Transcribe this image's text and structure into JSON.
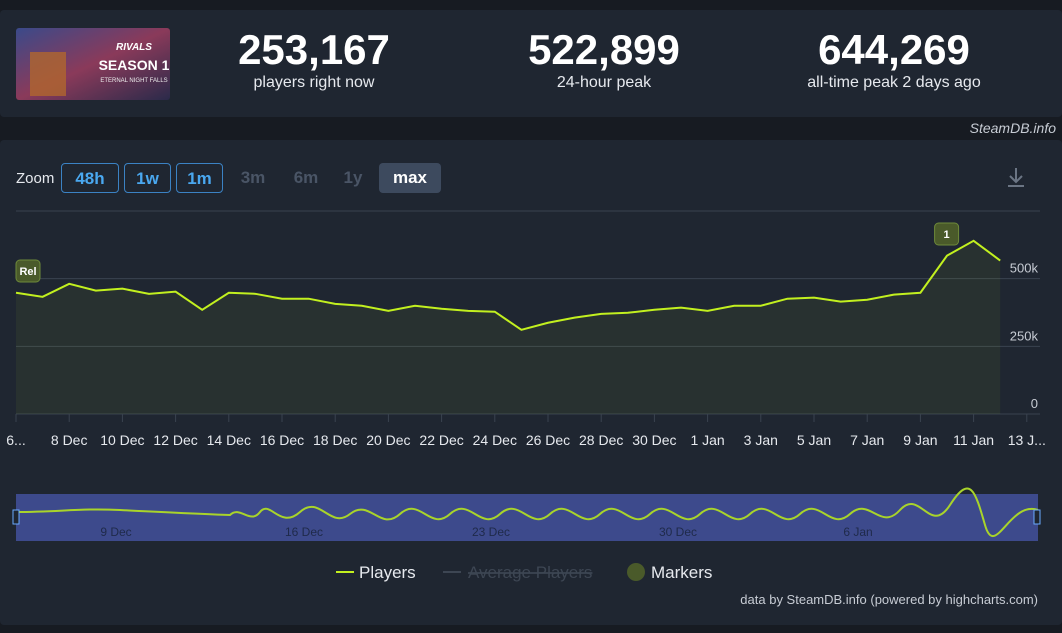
{
  "header": {
    "stats": [
      {
        "value": "253,167",
        "label": "players right now"
      },
      {
        "value": "522,899",
        "label": "24-hour peak"
      },
      {
        "value": "644,269",
        "label": "all-time peak 2 days ago"
      }
    ],
    "credit": "SteamDB.info",
    "thumbnail": {
      "brand": "RIVALS",
      "season": "SEASON 1",
      "subtitle": "ETERNAL NIGHT FALLS"
    }
  },
  "zoom": {
    "label": "Zoom",
    "buttons": [
      "48h",
      "1w",
      "1m",
      "3m",
      "6m",
      "1y",
      "max"
    ]
  },
  "chart_data": {
    "type": "line",
    "categories": [
      "6...",
      null,
      "8 Dec",
      null,
      "10 Dec",
      null,
      "12 Dec",
      null,
      "14 Dec",
      null,
      "16 Dec",
      null,
      "18 Dec",
      null,
      "20 Dec",
      null,
      "22 Dec",
      null,
      "24 Dec",
      null,
      "26 Dec",
      null,
      "28 Dec",
      null,
      "30 Dec",
      null,
      "1 Jan",
      null,
      "3 Jan",
      null,
      "5 Jan",
      null,
      "7 Jan",
      null,
      "9 Jan",
      null,
      "11 Jan",
      null,
      "13 J..."
    ],
    "series": [
      {
        "name": "Players",
        "color": "#c2f01f",
        "values": [
          448000,
          433000,
          481000,
          456000,
          463000,
          444000,
          452000,
          385000,
          448000,
          444000,
          426000,
          426000,
          407000,
          400000,
          381000,
          400000,
          389000,
          381000,
          378000,
          311000,
          337000,
          356000,
          370000,
          374000,
          385000,
          393000,
          381000,
          400000,
          400000,
          426000,
          430000,
          415000,
          422000,
          441000,
          448000,
          585000,
          640000,
          567000,
          null
        ]
      },
      {
        "name": "Average Players",
        "color": "#3d4653"
      }
    ],
    "legend_markers": "Markers",
    "markers": [
      {
        "label": "Rel",
        "category": "6..."
      },
      {
        "label": "1",
        "category": "11 Jan"
      }
    ],
    "ylim": [
      0,
      750000
    ],
    "yticks": [
      {
        "value": 0,
        "label": "0"
      },
      {
        "value": 250000,
        "label": "250k"
      },
      {
        "value": 500000,
        "label": "500k"
      }
    ],
    "grid": true,
    "navigator_labels": [
      "9 Dec",
      "16 Dec",
      "23 Dec",
      "30 Dec",
      "6 Jan"
    ],
    "footer": "data by SteamDB.info (powered by highcharts.com)"
  }
}
